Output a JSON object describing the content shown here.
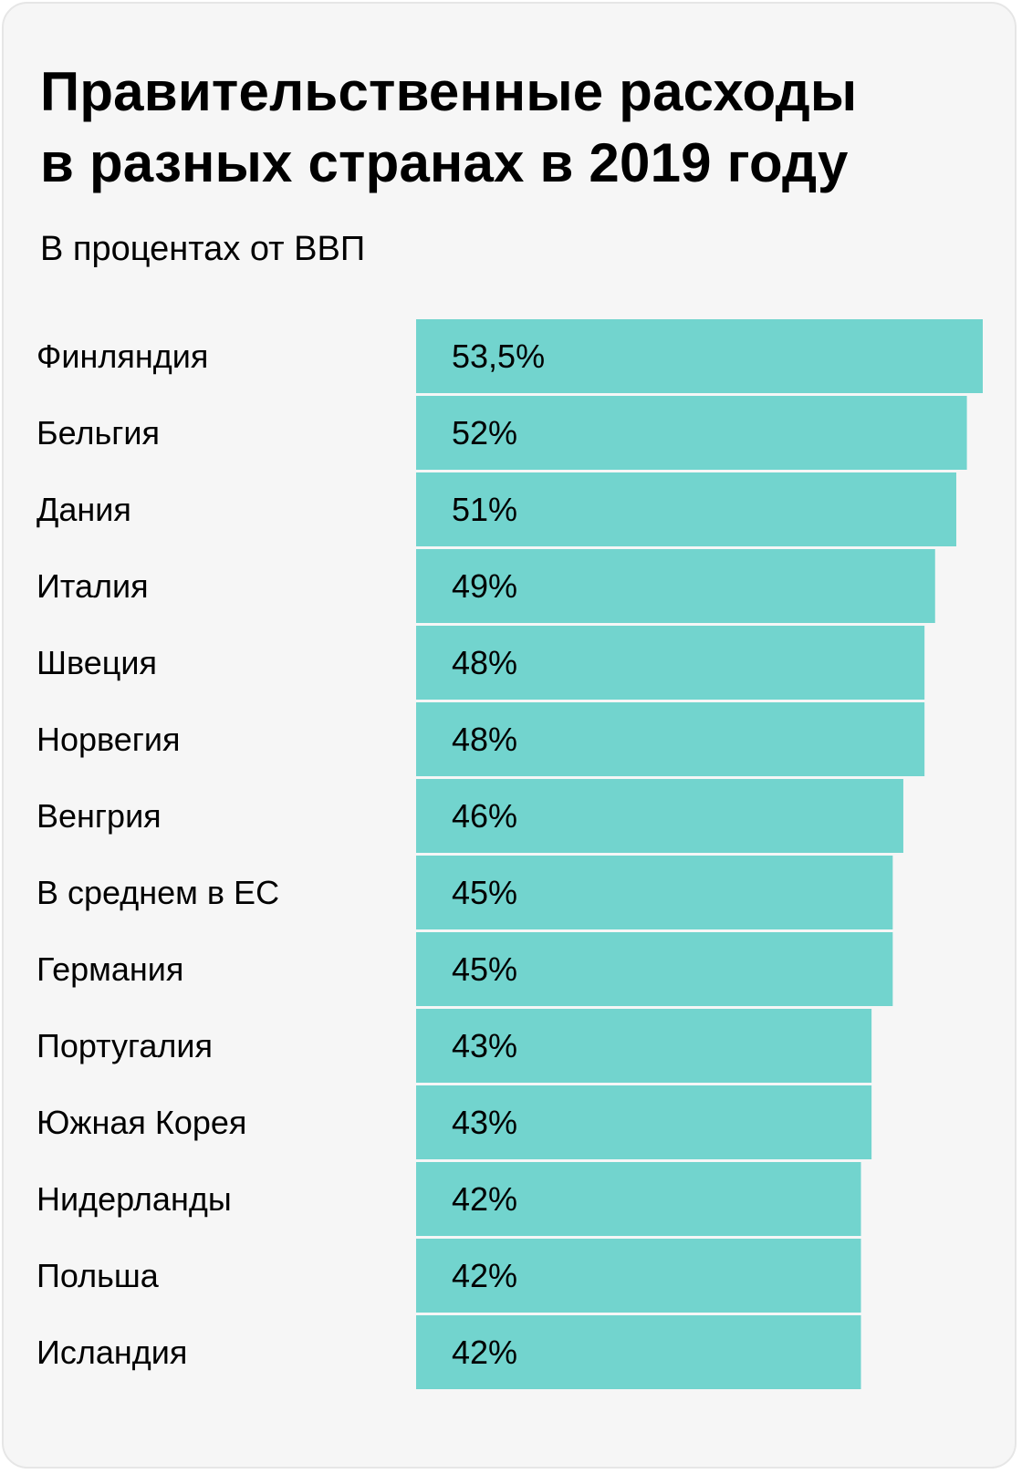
{
  "title_line1": "Правительственные расходы",
  "title_line2": "в разных странах в 2019 году",
  "subtitle": "В процентах от ВВП",
  "colors": {
    "bar": "#72d4ce",
    "background": "#f6f6f6"
  },
  "chart_data": {
    "type": "bar",
    "orientation": "horizontal",
    "title": "Правительственные расходы в разных странах в 2019 году",
    "subtitle": "В процентах от ВВП",
    "categories": [
      "Финляндия",
      "Бельгия",
      "Дания",
      "Италия",
      "Швеция",
      "Норвегия",
      "Венгрия",
      "В среднем в ЕС",
      "Германия",
      "Португалия",
      "Южная Корея",
      "Нидерланды",
      "Польша",
      "Исландия"
    ],
    "values": [
      53.5,
      52,
      51,
      49,
      48,
      48,
      46,
      45,
      45,
      43,
      43,
      42,
      42,
      42
    ],
    "value_labels": [
      "53,5%",
      "52%",
      "51%",
      "49%",
      "48%",
      "48%",
      "46%",
      "45%",
      "45%",
      "43%",
      "43%",
      "42%",
      "42%",
      "42%"
    ],
    "unit": "%",
    "xlim": [
      0,
      53.5
    ],
    "grid": false,
    "legend": "none"
  }
}
